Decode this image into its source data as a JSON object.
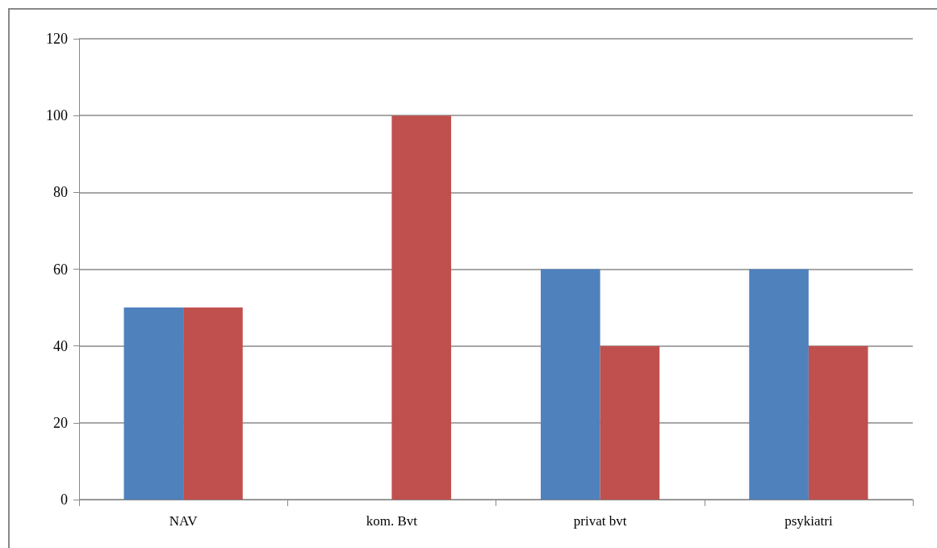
{
  "chart_data": {
    "type": "bar",
    "categories": [
      "NAV",
      "kom. Bvt",
      "privat bvt",
      "psykiatri"
    ],
    "series": [
      {
        "color": "#4f81bd",
        "values": [
          50,
          0,
          60,
          60
        ]
      },
      {
        "color": "#c0504d",
        "values": [
          50,
          100,
          40,
          40
        ]
      }
    ],
    "ylim": [
      0,
      120
    ],
    "yticks": [
      0,
      20,
      40,
      60,
      80,
      100,
      120
    ],
    "grid": "y"
  }
}
